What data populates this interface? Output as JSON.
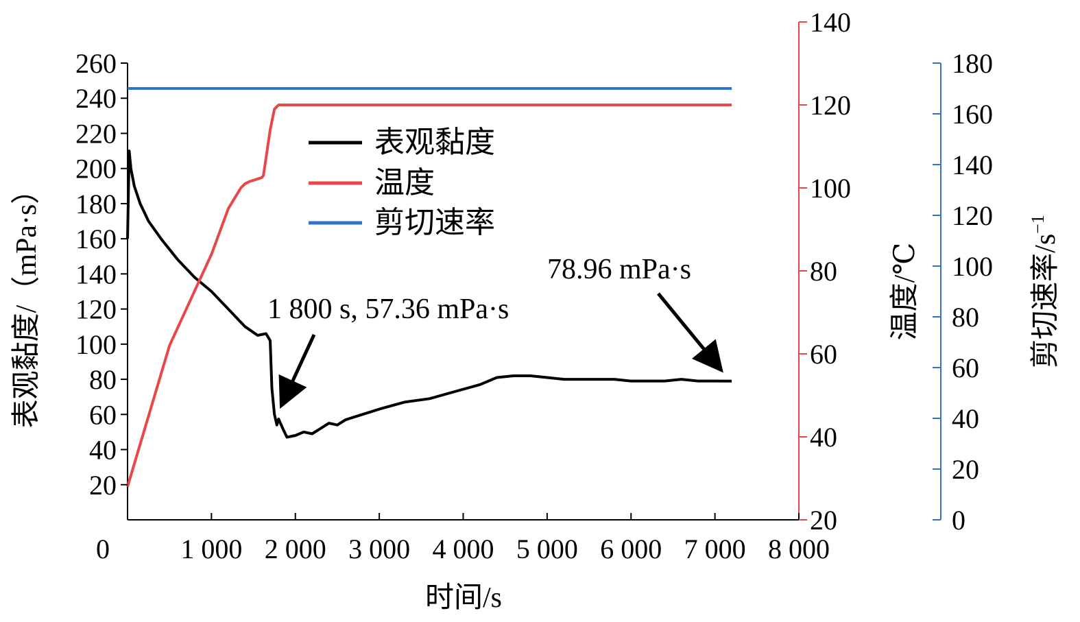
{
  "chart_data": {
    "type": "line",
    "x_axis": {
      "label": "时间/s",
      "range": [
        0,
        8000
      ],
      "tick_labels": [
        "0",
        "1 000",
        "2 000",
        "3 000",
        "4 000",
        "5 000",
        "6 000",
        "7 000",
        "8 000"
      ],
      "tick_values": [
        0,
        1000,
        2000,
        3000,
        4000,
        5000,
        6000,
        7000,
        8000
      ]
    },
    "y_axes": {
      "left": {
        "label": "表观黏度/（mPa·s）",
        "range": [
          0,
          260
        ],
        "tick_values": [
          20,
          40,
          60,
          80,
          100,
          120,
          140,
          160,
          180,
          200,
          220,
          240,
          260
        ],
        "color": "#000000"
      },
      "right1": {
        "label": "温度/℃",
        "range": [
          20,
          140
        ],
        "tick_values": [
          20,
          40,
          60,
          80,
          100,
          120,
          140
        ],
        "color": "#e8474a"
      },
      "right2": {
        "label": "剪切速率/s",
        "label_superscript": "−1",
        "range": [
          0,
          180
        ],
        "tick_values": [
          0,
          20,
          40,
          60,
          80,
          100,
          120,
          140,
          160,
          180
        ],
        "color": "#2f74c8"
      }
    },
    "series": [
      {
        "name": "表观黏度",
        "axis": "left",
        "color": "#000000",
        "x": [
          0,
          20,
          40,
          80,
          150,
          250,
          400,
          600,
          800,
          1000,
          1200,
          1400,
          1550,
          1650,
          1700,
          1720,
          1750,
          1780,
          1800,
          1850,
          1900,
          2000,
          2100,
          2200,
          2300,
          2400,
          2500,
          2600,
          2800,
          3000,
          3300,
          3600,
          3900,
          4200,
          4400,
          4600,
          4800,
          5000,
          5200,
          5400,
          5600,
          5800,
          6000,
          6200,
          6400,
          6600,
          6800,
          7000,
          7200
        ],
        "y": [
          160,
          210,
          200,
          190,
          180,
          170,
          160,
          148,
          138,
          130,
          120,
          110,
          105,
          106,
          102,
          75,
          60,
          54,
          57.36,
          52,
          47,
          48,
          50,
          49,
          52,
          55,
          54,
          57,
          60,
          63,
          67,
          69,
          73,
          77,
          81,
          82,
          82,
          81,
          80,
          80,
          80,
          80,
          79,
          79,
          79,
          80,
          79,
          79,
          78.96
        ]
      },
      {
        "name": "温度",
        "axis": "right1",
        "color": "#e8474a",
        "x": [
          0,
          500,
          1000,
          1200,
          1350,
          1400,
          1450,
          1600,
          1620,
          1700,
          1750,
          1800,
          1900,
          2000,
          7200
        ],
        "y": [
          28,
          62,
          84,
          95,
          100,
          101,
          101.5,
          102.5,
          103,
          114,
          119,
          120,
          120,
          120,
          120
        ]
      },
      {
        "name": "剪切速率",
        "axis": "right2",
        "color": "#2f74c8",
        "x": [
          0,
          7200
        ],
        "y": [
          170,
          170
        ]
      }
    ],
    "legend": {
      "position": "upper-center",
      "entries": [
        "表观黏度",
        "温度",
        "剪切速率"
      ]
    },
    "annotations": [
      {
        "text": "1 800 s, 57.36 mPa·s",
        "points_to": {
          "x": 1800,
          "y": 57.36,
          "axis": "left"
        }
      },
      {
        "text": "78.96 mPa·s",
        "points_to": {
          "x": 7200,
          "y": 78.96,
          "axis": "left"
        }
      }
    ],
    "grid": false
  }
}
